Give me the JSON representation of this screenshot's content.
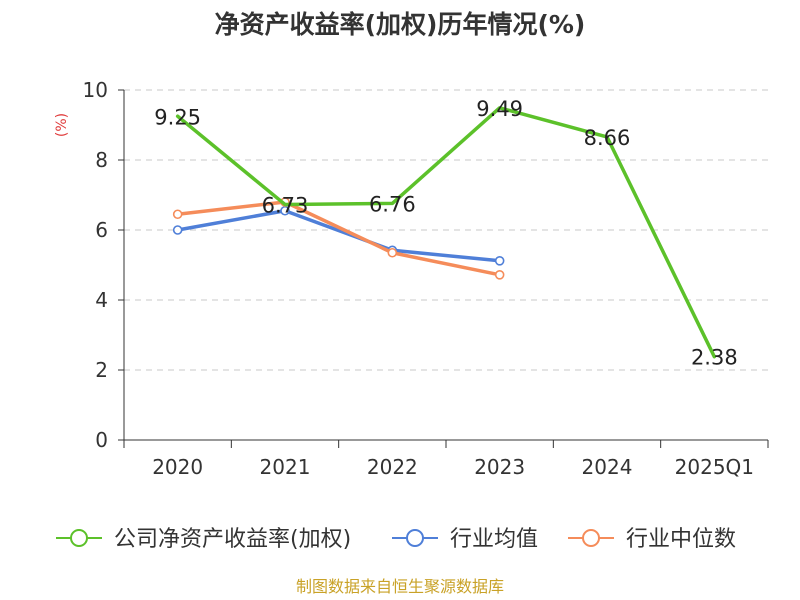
{
  "chart_data": {
    "type": "line",
    "title": "净资产收益率(加权)历年情况(%)",
    "ylabel": "(%)",
    "xlabel": "",
    "categories": [
      "2020",
      "2021",
      "2022",
      "2023",
      "2024",
      "2025Q1"
    ],
    "ylim": [
      0,
      10
    ],
    "yticks": [
      "0",
      "2",
      "4",
      "6",
      "8",
      "10"
    ],
    "grid": true,
    "legend_position": "bottom",
    "series": [
      {
        "name": "公司净资产收益率(加权)",
        "color": "#5cc12a",
        "values": [
          9.25,
          6.73,
          6.76,
          9.49,
          8.66,
          2.38
        ],
        "labels": [
          "9.25",
          "6.73",
          "6.76",
          "9.49",
          "8.66",
          "2.38"
        ],
        "show_markers": false
      },
      {
        "name": "行业均值",
        "color": "#4f7fd8",
        "values": [
          6.0,
          6.55,
          5.42,
          5.12,
          null,
          null
        ],
        "show_markers": true
      },
      {
        "name": "行业中位数",
        "color": "#f58c5a",
        "values": [
          6.45,
          6.8,
          5.35,
          4.72,
          null,
          null
        ],
        "show_markers": true
      }
    ],
    "source": "制图数据来自恒生聚源数据库"
  }
}
